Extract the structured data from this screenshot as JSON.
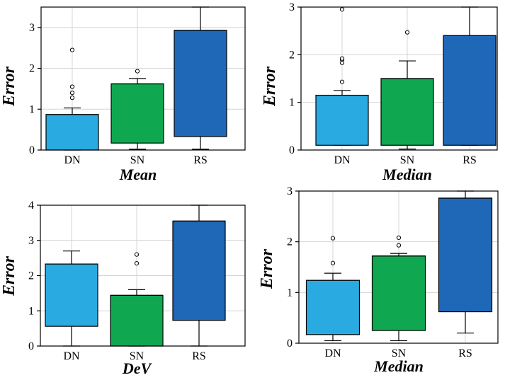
{
  "colors": {
    "DN": "#29abe2",
    "SN": "#0fa850",
    "RS": "#1f68b8"
  },
  "chart_data": [
    {
      "type": "box",
      "title": "",
      "xlabel": "Mean",
      "ylabel": "Error",
      "categories": [
        "DN",
        "SN",
        "RS"
      ],
      "ylim": [
        0,
        3.5
      ],
      "yticks": [
        0,
        1,
        2,
        3
      ],
      "grid": true,
      "boxes": [
        {
          "name": "DN",
          "whisker_low": 0,
          "q1": 0,
          "median": 0.87,
          "q3": 0.87,
          "whisker_high": 1.03,
          "outliers": [
            1.28,
            1.4,
            1.55,
            1.55,
            2.45
          ]
        },
        {
          "name": "SN",
          "whisker_low": 0.02,
          "q1": 0.17,
          "median": 1.62,
          "q3": 1.62,
          "whisker_high": 1.75,
          "outliers": [
            1.93
          ]
        },
        {
          "name": "RS",
          "whisker_low": 0.02,
          "q1": 0.33,
          "median": 2.93,
          "q3": 2.93,
          "whisker_high": 3.5,
          "outliers": []
        }
      ]
    },
    {
      "type": "box",
      "title": "",
      "xlabel": "Median",
      "ylabel": "Error",
      "categories": [
        "DN",
        "SN",
        "RS"
      ],
      "ylim": [
        0,
        3
      ],
      "yticks": [
        0,
        1,
        2,
        3
      ],
      "grid": true,
      "boxes": [
        {
          "name": "DN",
          "whisker_low": 0.1,
          "q1": 0.1,
          "median": 1.15,
          "q3": 1.15,
          "whisker_high": 1.25,
          "outliers": [
            1.43,
            1.83,
            1.9,
            1.92,
            2.95
          ]
        },
        {
          "name": "SN",
          "whisker_low": 0.02,
          "q1": 0.1,
          "median": 1.5,
          "q3": 1.5,
          "whisker_high": 1.87,
          "outliers": [
            2.47
          ]
        },
        {
          "name": "RS",
          "whisker_low": 0.1,
          "q1": 0.1,
          "median": 2.4,
          "q3": 2.4,
          "whisker_high": 3.0,
          "outliers": []
        }
      ]
    },
    {
      "type": "box",
      "title": "",
      "xlabel": "DeV",
      "ylabel": "Error",
      "categories": [
        "DN",
        "SN",
        "RS"
      ],
      "ylim": [
        0,
        4
      ],
      "yticks": [
        0,
        1,
        2,
        3,
        4
      ],
      "grid": true,
      "boxes": [
        {
          "name": "DN",
          "whisker_low": 0,
          "q1": 0.56,
          "median": 2.33,
          "q3": 2.33,
          "whisker_high": 2.7,
          "outliers": []
        },
        {
          "name": "SN",
          "whisker_low": 0,
          "q1": 0,
          "median": 1.44,
          "q3": 1.44,
          "whisker_high": 1.6,
          "outliers": [
            2.35,
            2.6
          ]
        },
        {
          "name": "RS",
          "whisker_low": 0,
          "q1": 0.73,
          "median": 3.55,
          "q3": 3.55,
          "whisker_high": 4.0,
          "outliers": []
        }
      ]
    },
    {
      "type": "box",
      "title": "",
      "xlabel": "Median",
      "ylabel": "Error",
      "categories": [
        "DN",
        "SN",
        "RS"
      ],
      "ylim": [
        0,
        3
      ],
      "yticks": [
        0,
        1,
        2,
        3
      ],
      "grid": true,
      "boxes": [
        {
          "name": "DN",
          "whisker_low": 0.05,
          "q1": 0.17,
          "median": 1.24,
          "q3": 1.24,
          "whisker_high": 1.38,
          "outliers": [
            1.58,
            2.07
          ]
        },
        {
          "name": "SN",
          "whisker_low": 0.05,
          "q1": 0.25,
          "median": 1.72,
          "q3": 1.72,
          "whisker_high": 1.77,
          "outliers": [
            1.93,
            2.08
          ]
        },
        {
          "name": "RS",
          "whisker_low": 0.2,
          "q1": 0.62,
          "median": 2.86,
          "q3": 2.86,
          "whisker_high": 3.0,
          "outliers": []
        }
      ]
    }
  ]
}
